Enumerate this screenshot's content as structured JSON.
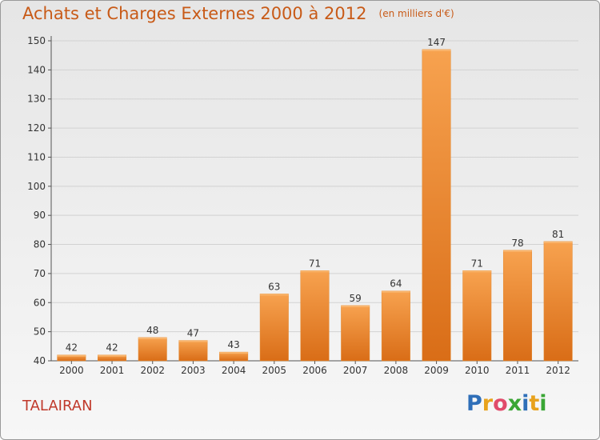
{
  "chart_data": {
    "type": "bar",
    "title": "Achats et Charges Externes 2000 à 2012",
    "subtitle": "(en milliers d'€)",
    "categories": [
      "2000",
      "2001",
      "2002",
      "2003",
      "2004",
      "2005",
      "2006",
      "2007",
      "2008",
      "2009",
      "2010",
      "2011",
      "2012"
    ],
    "values": [
      42,
      42,
      48,
      47,
      43,
      63,
      71,
      59,
      64,
      147,
      71,
      78,
      81
    ],
    "ylim": [
      40,
      150
    ],
    "yticks": [
      40,
      50,
      60,
      70,
      80,
      90,
      100,
      110,
      120,
      130,
      140,
      150
    ],
    "xlabel": "",
    "ylabel": "",
    "grid": true,
    "bar_color": "#f0872e"
  },
  "footer": {
    "commune": "TALAIRAN",
    "brand_letters": [
      "P",
      "r",
      "o",
      "x",
      "i",
      "t",
      "i"
    ],
    "brand_colors": [
      "#2f6fb8",
      "#e8a21c",
      "#e14b6a",
      "#3aa635",
      "#2f6fb8",
      "#e8a21c",
      "#3aa635"
    ]
  }
}
